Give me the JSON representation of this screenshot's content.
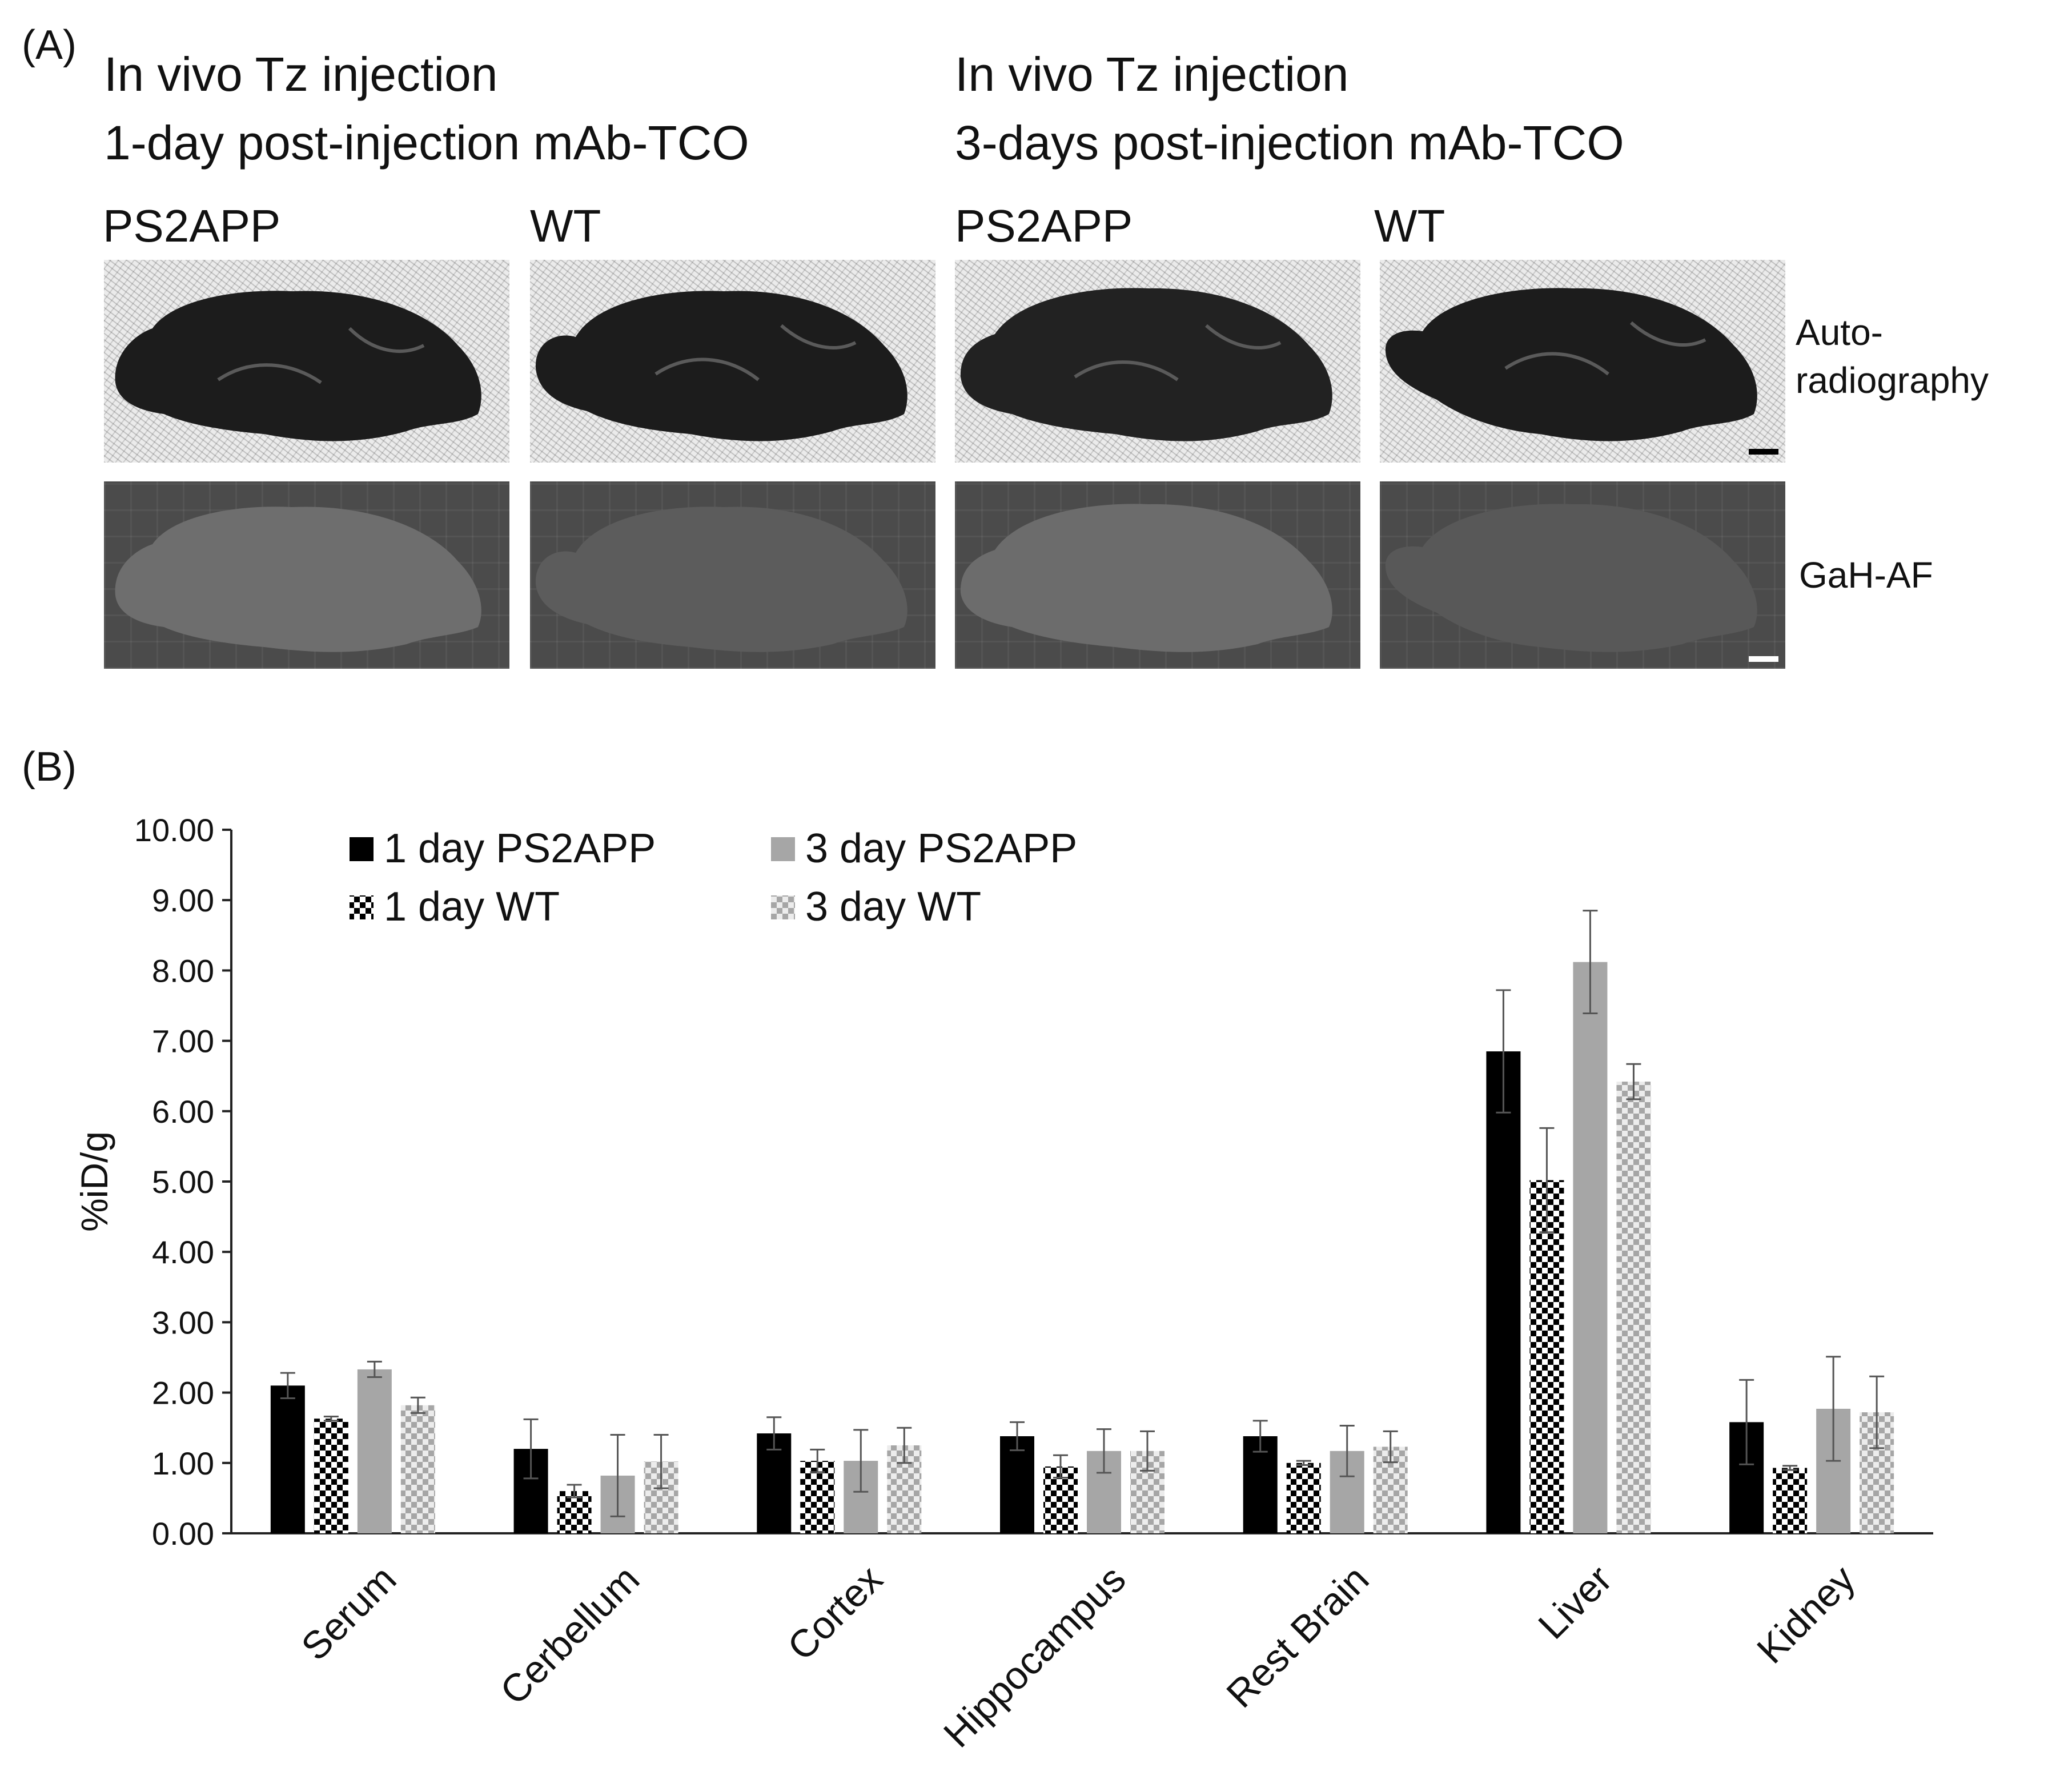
{
  "panel_a": {
    "label": "(A)",
    "conditions": [
      {
        "line1": "In vivo Tz injection",
        "line2": "1-day post-injection mAb-TCO",
        "genotypes": [
          "PS2APP",
          "WT"
        ]
      },
      {
        "line1": "In vivo Tz injection",
        "line2": "3-days post-injection mAb-TCO",
        "genotypes": [
          "PS2APP",
          "WT"
        ]
      }
    ],
    "row_labels": {
      "autoradiography": "Auto-\nradiography",
      "fluorescence": "GaH-AF"
    },
    "colors": {
      "autorad_tissue": "#1c1c1c",
      "fluor_background": "#4b4b4b",
      "fluor_tissue": "#6a6a6a"
    }
  },
  "panel_b": {
    "label": "(B)"
  },
  "chart_data": {
    "type": "bar",
    "ylabel": "%iD/g",
    "xlabel": "",
    "ylim": [
      0,
      10
    ],
    "yticks": [
      "0.00",
      "1.00",
      "2.00",
      "3.00",
      "4.00",
      "5.00",
      "6.00",
      "7.00",
      "8.00",
      "9.00",
      "10.00"
    ],
    "categories": [
      "Serum",
      "Cerbellum",
      "Cortex",
      "Hippocampus",
      "Rest Brain",
      "Liver",
      "Kidney"
    ],
    "legend_position": "top-left",
    "series": [
      {
        "name": "1 day PS2APP",
        "color": "#000000",
        "pattern": "solid",
        "values": [
          2.1,
          1.2,
          1.42,
          1.38,
          1.38,
          6.85,
          1.58
        ],
        "errors": [
          0.18,
          0.42,
          0.23,
          0.2,
          0.22,
          0.87,
          0.6
        ]
      },
      {
        "name": "1 day WT",
        "color": "#000000",
        "pattern": "checker",
        "values": [
          1.63,
          0.6,
          1.03,
          0.95,
          1.0,
          5.02,
          0.93
        ],
        "errors": [
          0.03,
          0.09,
          0.16,
          0.16,
          0.03,
          0.74,
          0.03
        ]
      },
      {
        "name": "3 day PS2APP",
        "color": "#a6a6a6",
        "pattern": "solid",
        "values": [
          2.33,
          0.82,
          1.03,
          1.17,
          1.17,
          8.12,
          1.77
        ],
        "errors": [
          0.11,
          0.58,
          0.44,
          0.31,
          0.36,
          0.73,
          0.74
        ]
      },
      {
        "name": "3 day WT",
        "color": "#a6a6a6",
        "pattern": "checker",
        "values": [
          1.82,
          1.02,
          1.25,
          1.17,
          1.23,
          6.42,
          1.72
        ],
        "errors": [
          0.11,
          0.38,
          0.25,
          0.28,
          0.22,
          0.25,
          0.51
        ]
      }
    ]
  }
}
